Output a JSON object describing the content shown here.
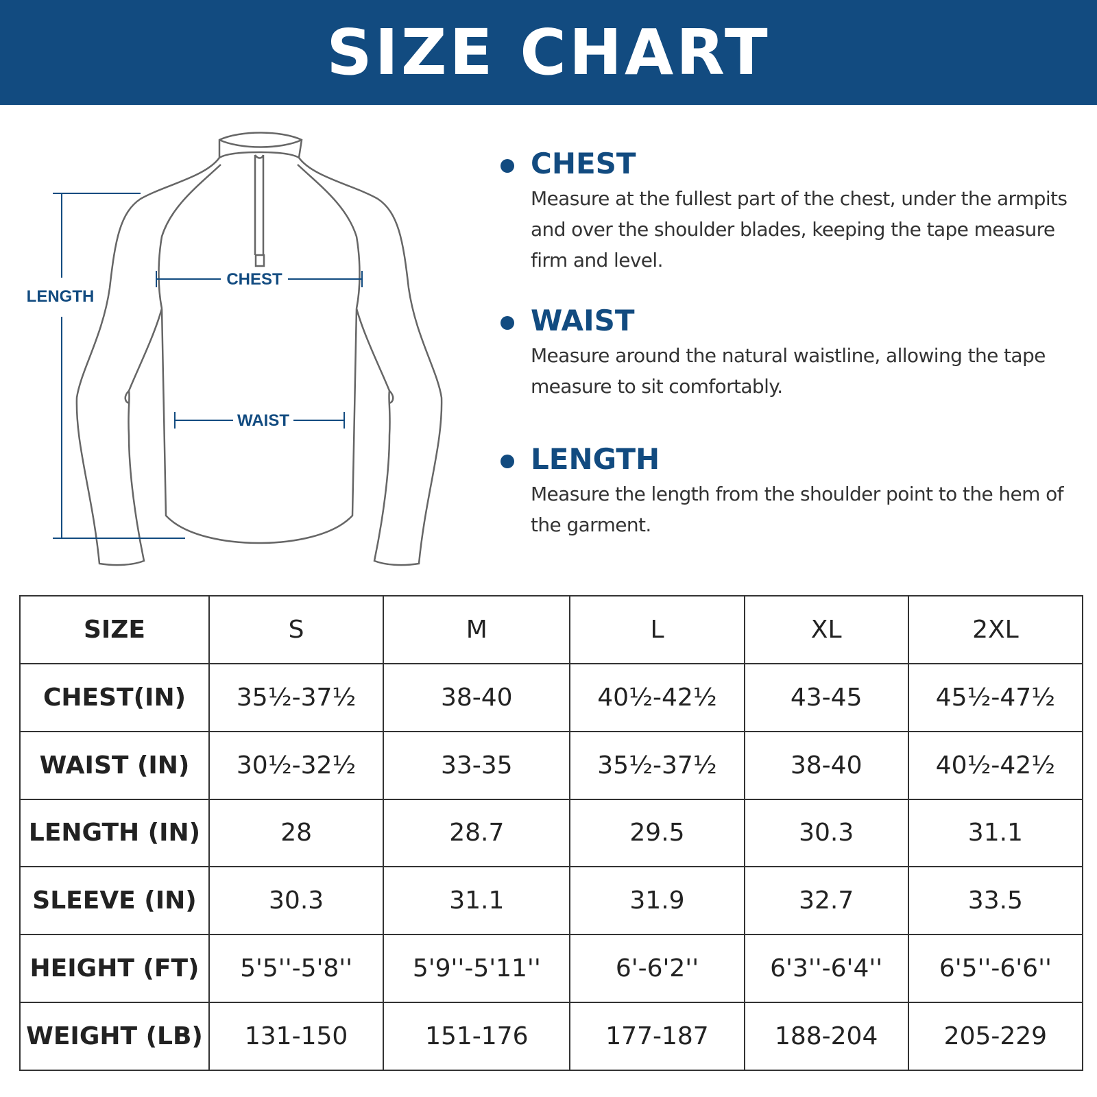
{
  "header": {
    "title": "SIZE CHART"
  },
  "diagram": {
    "length": "LENGTH",
    "chest": "CHEST",
    "waist": "WAIST"
  },
  "guide": {
    "items": [
      {
        "title": "CHEST",
        "text": "Measure at the fullest part of the chest, under the armpits and over the shoulder blades, keeping the tape measure firm and level."
      },
      {
        "title": "WAIST",
        "text": "Measure around the natural waistline, allowing the tape measure to sit comfortably."
      },
      {
        "title": "LENGTH",
        "text": "Measure the length from the shoulder point to the hem of the garment."
      }
    ]
  },
  "table": {
    "header": [
      "SIZE",
      "S",
      "M",
      "L",
      "XL",
      "2XL"
    ],
    "rows": [
      [
        "CHEST(IN)",
        "35½-37½",
        "38-40",
        "40½-42½",
        "43-45",
        "45½-47½"
      ],
      [
        "WAIST (IN)",
        "30½-32½",
        "33-35",
        "35½-37½",
        "38-40",
        "40½-42½"
      ],
      [
        "LENGTH (IN)",
        "28",
        "28.7",
        "29.5",
        "30.3",
        "31.1"
      ],
      [
        "SLEEVE (IN)",
        "30.3",
        "31.1",
        "31.9",
        "32.7",
        "33.5"
      ],
      [
        "HEIGHT (FT)",
        "5'5''-5'8''",
        "5'9''-5'11''",
        "6'-6'2''",
        "6'3''-6'4''",
        "6'5''-6'6''"
      ],
      [
        "WEIGHT (LB)",
        "131-150",
        "151-176",
        "177-187",
        "188-204",
        "205-229"
      ]
    ]
  }
}
